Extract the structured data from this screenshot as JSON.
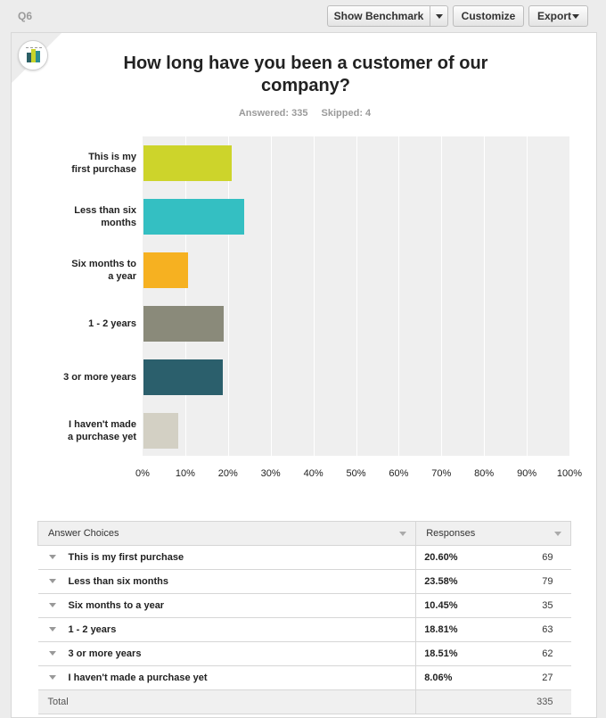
{
  "toolbar": {
    "question_id": "Q6",
    "show_benchmark_label": "Show Benchmark",
    "customize_label": "Customize",
    "export_label": "Export"
  },
  "question": {
    "title_line1": "How long have you been a customer of our",
    "title_line2": "company?",
    "answered_label": "Answered: 335",
    "skipped_label": "Skipped: 4"
  },
  "chart_data": {
    "type": "bar",
    "orientation": "horizontal",
    "categories": [
      [
        "This is my",
        "first purchase"
      ],
      [
        "Less than six",
        "months"
      ],
      [
        "Six months to",
        "a year"
      ],
      [
        "1 - 2 years"
      ],
      [
        "3 or more years"
      ],
      [
        "I haven't made",
        "a purchase yet"
      ]
    ],
    "values": [
      20.6,
      23.58,
      10.45,
      18.81,
      18.51,
      8.06
    ],
    "colors": [
      "#cdd42b",
      "#34bfc2",
      "#f6b121",
      "#8a8a7a",
      "#2b5f6c",
      "#d3d0c4"
    ],
    "xlim": [
      0,
      100
    ],
    "x_ticks": [
      "0%",
      "10%",
      "20%",
      "30%",
      "40%",
      "50%",
      "60%",
      "70%",
      "80%",
      "90%",
      "100%"
    ],
    "grid": true
  },
  "table": {
    "header_answer": "Answer Choices",
    "header_responses": "Responses",
    "rows": [
      {
        "answer": "This is my first purchase",
        "percent": "20.60%",
        "count": "69"
      },
      {
        "answer": "Less than six months",
        "percent": "23.58%",
        "count": "79"
      },
      {
        "answer": "Six months to a year",
        "percent": "10.45%",
        "count": "35"
      },
      {
        "answer": "1 - 2 years",
        "percent": "18.81%",
        "count": "63"
      },
      {
        "answer": "3 or more years",
        "percent": "18.51%",
        "count": "62"
      },
      {
        "answer": "I haven't made a purchase yet",
        "percent": "8.06%",
        "count": "27"
      }
    ],
    "total_label": "Total",
    "total_count": "335"
  }
}
